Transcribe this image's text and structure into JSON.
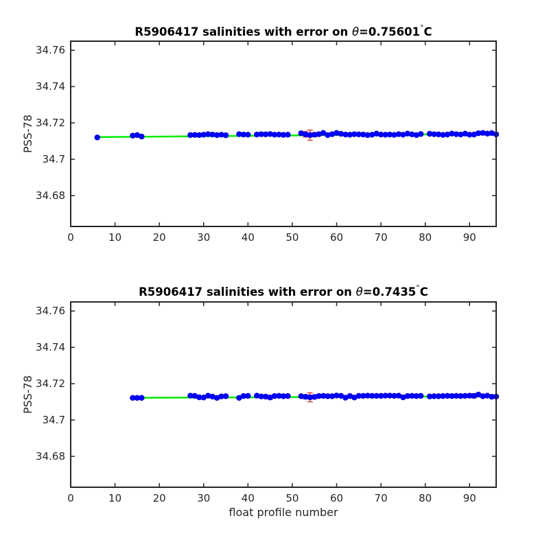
{
  "chart_data": [
    {
      "type": "scatter",
      "title_prefix": "R5906417 salinities with error on ",
      "title_symbol": "θ",
      "title_value": "=0.75601",
      "title_degree": "°",
      "title_unit": "C",
      "xlabel": "",
      "ylabel": "PSS-78",
      "xlim": [
        0,
        96
      ],
      "ylim": [
        34.663,
        34.765
      ],
      "xticks": [
        0,
        10,
        20,
        30,
        40,
        50,
        60,
        70,
        80,
        90
      ],
      "yticks": [
        34.68,
        34.7,
        34.72,
        34.74,
        34.76
      ],
      "ytick_labels": [
        "34.68",
        "34.7",
        "34.72",
        "34.74",
        "34.76"
      ],
      "grid": false,
      "series": [
        {
          "role": "points",
          "x": [
            6,
            14,
            15,
            16,
            27,
            28,
            29,
            30,
            31,
            32,
            33,
            34,
            35,
            38,
            39,
            40,
            42,
            43,
            44,
            45,
            46,
            47,
            48,
            49,
            52,
            53,
            54,
            55,
            56,
            57,
            58,
            59,
            60,
            61,
            62,
            63,
            64,
            65,
            66,
            67,
            68,
            69,
            70,
            71,
            72,
            73,
            74,
            75,
            76,
            77,
            78,
            79,
            81,
            82,
            83,
            84,
            85,
            86,
            87,
            88,
            89,
            90,
            91,
            92,
            93,
            94,
            95,
            96
          ],
          "y": [
            34.712,
            34.713,
            34.7133,
            34.7125,
            34.7133,
            34.7134,
            34.7133,
            34.7135,
            34.7138,
            34.7136,
            34.7133,
            34.7135,
            34.7132,
            34.7138,
            34.7136,
            34.7135,
            34.7136,
            34.7138,
            34.7137,
            34.7139,
            34.7135,
            34.7136,
            34.7134,
            34.7135,
            34.7143,
            34.7137,
            34.7133,
            34.7135,
            34.7138,
            34.7145,
            34.7133,
            34.7138,
            34.7145,
            34.714,
            34.7136,
            34.7135,
            34.7138,
            34.7137,
            34.7136,
            34.7133,
            34.7135,
            34.7141,
            34.7136,
            34.7135,
            34.7136,
            34.7134,
            34.7138,
            34.7135,
            34.7141,
            34.7137,
            34.7133,
            34.7139,
            34.714,
            34.7138,
            34.7137,
            34.7134,
            34.7136,
            34.7141,
            34.7138,
            34.7136,
            34.7141,
            34.7135,
            34.7136,
            34.7143,
            34.7145,
            34.7141,
            34.7144,
            34.7137
          ],
          "err": [
            0.0007,
            0.0003,
            0.0003,
            0.0003,
            0.0004,
            0.0003,
            0.0003,
            0.0003,
            0.0004,
            0.0003,
            0.0003,
            0.0005,
            0.0008,
            0.0003,
            0.0004,
            0.0003,
            0.0008,
            0.0009,
            0.0007,
            0.0008,
            0.0006,
            0.0005,
            0.0003,
            0.0004,
            0.001,
            0.0015,
            0.0028,
            0.0012,
            0.0009,
            0.0004,
            0.0004,
            0.0003,
            0.0004,
            0.0006,
            0.0004,
            0.0008,
            0.0007,
            0.0008,
            0.0004,
            0.0003,
            0.0003,
            0.0005,
            0.0008,
            0.0006,
            0.0005,
            0.0004,
            0.0006,
            0.0004,
            0.0004,
            0.0004,
            0.0003,
            0.0004,
            0.0006,
            0.0005,
            0.0004,
            0.0003,
            0.0004,
            0.0004,
            0.0005,
            0.0004,
            0.0003,
            0.0006,
            0.0008,
            0.0009,
            0.0009,
            0.0008,
            0.0007,
            0.0006
          ],
          "color": "#0000ff",
          "error_color": "#cc0000"
        },
        {
          "role": "fit",
          "x": [
            6,
            96
          ],
          "y": [
            34.7122,
            34.714
          ],
          "color": "#00ee00"
        }
      ]
    },
    {
      "type": "scatter",
      "title_prefix": "R5906417 salinities with error on ",
      "title_symbol": "θ",
      "title_value": "=0.7435",
      "title_degree": "°",
      "title_unit": "C",
      "xlabel": "float profile number",
      "ylabel": "PSS-78",
      "xlim": [
        0,
        96
      ],
      "ylim": [
        34.663,
        34.765
      ],
      "xticks": [
        0,
        10,
        20,
        30,
        40,
        50,
        60,
        70,
        80,
        90
      ],
      "yticks": [
        34.68,
        34.7,
        34.72,
        34.74,
        34.76
      ],
      "ytick_labels": [
        "34.68",
        "34.7",
        "34.72",
        "34.74",
        "34.76"
      ],
      "grid": false,
      "series": [
        {
          "role": "points",
          "x": [
            14,
            15,
            16,
            27,
            28,
            29,
            30,
            31,
            32,
            33,
            34,
            35,
            38,
            39,
            40,
            42,
            43,
            44,
            45,
            46,
            47,
            48,
            49,
            52,
            53,
            54,
            55,
            56,
            57,
            58,
            59,
            60,
            61,
            62,
            63,
            64,
            65,
            66,
            67,
            68,
            69,
            70,
            71,
            72,
            73,
            74,
            75,
            76,
            77,
            78,
            79,
            81,
            82,
            83,
            84,
            85,
            86,
            87,
            88,
            89,
            90,
            91,
            92,
            93,
            94,
            95,
            96
          ],
          "y": [
            34.7122,
            34.7122,
            34.7122,
            34.7134,
            34.7133,
            34.7125,
            34.7124,
            34.7134,
            34.7129,
            34.7122,
            34.713,
            34.7131,
            34.7122,
            34.7132,
            34.7133,
            34.7134,
            34.713,
            34.7129,
            34.7124,
            34.7132,
            34.7133,
            34.7131,
            34.7132,
            34.7131,
            34.7128,
            34.7125,
            34.7127,
            34.7132,
            34.7133,
            34.7131,
            34.7131,
            34.7135,
            34.7133,
            34.7123,
            34.7132,
            34.7124,
            34.7133,
            34.7133,
            34.7134,
            34.7133,
            34.7133,
            34.7133,
            34.7134,
            34.7134,
            34.7133,
            34.7134,
            34.7125,
            34.7132,
            34.7133,
            34.7132,
            34.7133,
            34.713,
            34.7131,
            34.7131,
            34.7132,
            34.7133,
            34.7132,
            34.7133,
            34.7132,
            34.7133,
            34.7134,
            34.7133,
            34.714,
            34.7131,
            34.7134,
            34.7128,
            34.7129
          ],
          "err": [
            0.0003,
            0.0003,
            0.0003,
            0.0004,
            0.0004,
            0.0004,
            0.0005,
            0.0004,
            0.0005,
            0.0006,
            0.0008,
            0.0009,
            0.0003,
            0.0008,
            0.0004,
            0.0006,
            0.0008,
            0.0009,
            0.001,
            0.0008,
            0.0007,
            0.0007,
            0.0005,
            0.0006,
            0.0012,
            0.0025,
            0.0011,
            0.0009,
            0.0006,
            0.0005,
            0.0004,
            0.0004,
            0.0006,
            0.0005,
            0.0006,
            0.0005,
            0.0004,
            0.0004,
            0.0003,
            0.0003,
            0.0003,
            0.0003,
            0.0003,
            0.0003,
            0.0003,
            0.0003,
            0.0003,
            0.0003,
            0.0003,
            0.0004,
            0.0003,
            0.0005,
            0.0003,
            0.0003,
            0.0003,
            0.0003,
            0.0003,
            0.0003,
            0.0004,
            0.0003,
            0.0005,
            0.0012,
            0.0008,
            0.0007,
            0.0004,
            0.0003,
            0.0003
          ],
          "color": "#0000ff",
          "error_color": "#cc0000"
        },
        {
          "role": "fit",
          "x": [
            14,
            96
          ],
          "y": [
            34.7122,
            34.7131
          ],
          "color": "#00ee00"
        }
      ]
    }
  ]
}
